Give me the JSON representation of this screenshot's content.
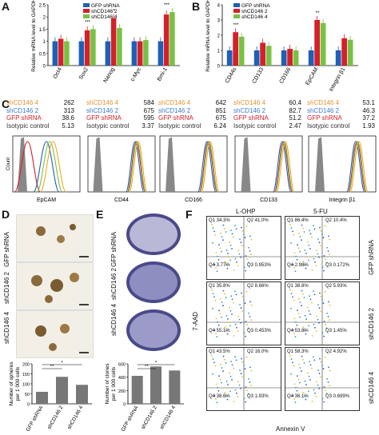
{
  "panels": {
    "A": "A",
    "B": "B",
    "C": "C",
    "D": "D",
    "E": "E",
    "F": "F"
  },
  "colors": {
    "gfp": "#1f5fb5",
    "sh2": "#d4202a",
    "sh4": "#79c143",
    "iso": "#808080",
    "orange": "#f5a623"
  },
  "legend": {
    "gfp": "GFP shRNA",
    "sh2": "shCD146 2",
    "sh4": "shCD146 4"
  },
  "chart_data": [
    {
      "id": "A",
      "type": "bar",
      "ylabel": "Relative mRNA level to GAPDH",
      "ylim": [
        0,
        2.5
      ],
      "yticks": [
        "0",
        "0.5",
        "1",
        "1.5",
        "2",
        "2.5"
      ],
      "categories": [
        "Oct4",
        "Sox2",
        "Nanog",
        "c-Myc",
        "Bmi-1"
      ],
      "series": [
        {
          "name": "GFP shRNA",
          "values": [
            1,
            1,
            1,
            1,
            1
          ]
        },
        {
          "name": "shCD146 2",
          "values": [
            1.1,
            1.45,
            1.95,
            1.0,
            2.1
          ]
        },
        {
          "name": "shCD146 4",
          "values": [
            1.0,
            1.5,
            1.55,
            1.05,
            2.2
          ]
        }
      ],
      "annotations": [
        "",
        "***",
        "*",
        "",
        "***"
      ]
    },
    {
      "id": "B",
      "type": "bar",
      "ylabel": "Relative mRNA level to GAPDH",
      "ylim": [
        0,
        4
      ],
      "yticks": [
        "0",
        "1",
        "2",
        "3",
        "4"
      ],
      "categories": [
        "CD44s",
        "CD133",
        "CD166",
        "EpCAM",
        "Integrin β1"
      ],
      "series": [
        {
          "name": "GFP shRNA",
          "values": [
            1,
            1,
            1,
            1,
            1
          ]
        },
        {
          "name": "shCD146 2",
          "values": [
            2.2,
            1.5,
            1.1,
            3.0,
            1.8
          ]
        },
        {
          "name": "shCD146 4",
          "values": [
            1.9,
            1.3,
            1.0,
            2.8,
            1.7
          ]
        }
      ],
      "annotations": [
        "***",
        "",
        "",
        "**",
        ""
      ]
    },
    {
      "id": "D",
      "type": "bar",
      "ylabel": "Number of spheres per 1 000 cells",
      "ylim": [
        0,
        200
      ],
      "yticks": [
        "0",
        "50",
        "100",
        "150",
        "200"
      ],
      "categories": [
        "GFP shRNA",
        "shCD146 2",
        "shCD146 4"
      ],
      "values": [
        60,
        135,
        95
      ],
      "annotations": [
        "**",
        "*"
      ]
    },
    {
      "id": "E",
      "type": "bar",
      "ylabel": "Number of clones per 1 000 cells",
      "ylim": [
        0,
        600
      ],
      "yticks": [
        "0",
        "200",
        "400",
        "600"
      ],
      "categories": [
        "GFP shRNA",
        "shCD146 2",
        "shCD146 4"
      ],
      "values": [
        420,
        560,
        500
      ],
      "annotations": [
        "**",
        "*"
      ]
    }
  ],
  "flow": {
    "xlabels": [
      "EpCAM",
      "CD44",
      "CD166",
      "CD133",
      "Integrin β1"
    ],
    "ylabel": "Count",
    "tables": [
      [
        [
          "shCD146 4",
          "262"
        ],
        [
          "shCD146 2",
          "313"
        ],
        [
          "GFP shRNA",
          "38.6"
        ],
        [
          "Isotypic control",
          "5.13"
        ]
      ],
      [
        [
          "shCD146 4",
          "584"
        ],
        [
          "shCD146 2",
          "675"
        ],
        [
          "GFP shRNA",
          "595"
        ],
        [
          "Isotypic control",
          "3.37"
        ]
      ],
      [
        [
          "shCD146 4",
          "642"
        ],
        [
          "shCD146 2",
          "851"
        ],
        [
          "GFP shRNA",
          "675"
        ],
        [
          "Isotypic control",
          "6.24"
        ]
      ],
      [
        [
          "shCD146 4",
          "60.4"
        ],
        [
          "shCD146 2",
          "82.7"
        ],
        [
          "GFP shRNA",
          "51.2"
        ],
        [
          "Isotypic control",
          "2.47"
        ]
      ],
      [
        [
          "shCD146 4",
          "53.1"
        ],
        [
          "shCD146 2",
          "46.3"
        ],
        [
          "GFP shRNA",
          "37.2"
        ],
        [
          "Isotypic control",
          "1.93"
        ]
      ]
    ]
  },
  "D": {
    "rows": [
      "GFP shRNA",
      "shCD146 2",
      "shCD146 4"
    ]
  },
  "E": {
    "rows": [
      "GFP shRNA",
      "shCD146 2",
      "shCD146 4"
    ]
  },
  "F": {
    "cols": [
      "L-OHP",
      "5-FU"
    ],
    "rows": [
      "GFP shRNA",
      "shCD146 2",
      "shCD146 4"
    ],
    "xlabel": "Annexin V",
    "ylabel": "7-AAD",
    "quads": [
      [
        [
          "Q1 34.3%",
          "Q2 41.0%",
          "Q4 3.77%",
          "Q3 0.953%"
        ],
        [
          "Q1 86.4%",
          "Q2 10.4%",
          "Q4 2.98%",
          "Q3 0.172%"
        ]
      ],
      [
        [
          "Q1 35.8%",
          "Q2 8.66%",
          "Q4 55.1%",
          "Q3 0.453%"
        ],
        [
          "Q1 38.8%",
          "Q2 5.93%",
          "Q4 53.8%",
          "Q3 1.45%"
        ]
      ],
      [
        [
          "Q1 43.5%",
          "Q2 16.0%",
          "Q4 38.6%",
          "Q3 1.93%"
        ],
        [
          "Q1 58.3%",
          "Q2 4.92%",
          "Q4 36.1%",
          "Q3 0.699%"
        ]
      ]
    ]
  }
}
